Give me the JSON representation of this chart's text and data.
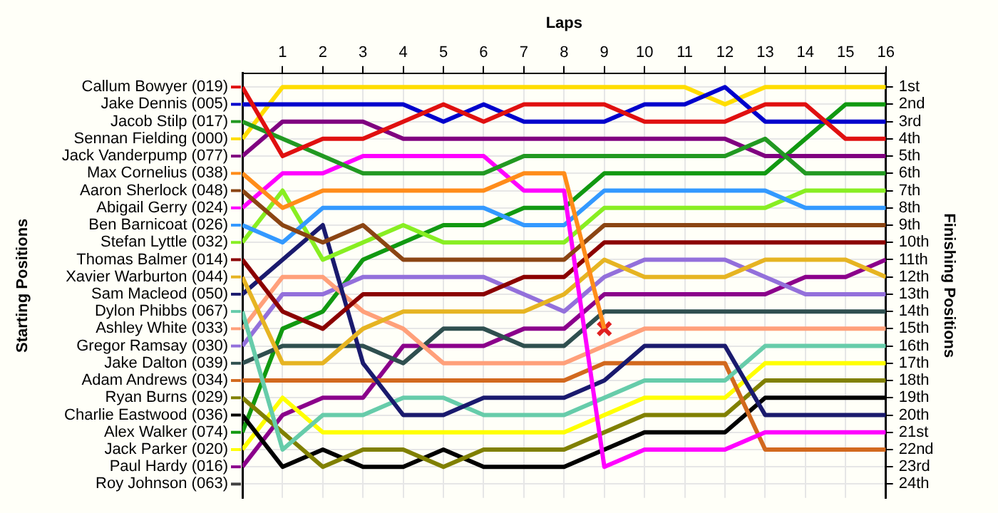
{
  "chart_data": {
    "type": "line",
    "xlabel": "Laps",
    "annotations": [
      "Starting Positions"
    ],
    "y2label": "Finishing Positions",
    "grid": true,
    "legend": "left",
    "x": [
      0,
      1,
      2,
      3,
      4,
      5,
      6,
      7,
      8,
      9,
      10,
      11,
      12,
      13,
      14,
      15,
      16
    ],
    "xlim": [
      0,
      16
    ],
    "xticks": [
      1,
      2,
      3,
      4,
      5,
      6,
      7,
      8,
      9,
      10,
      11,
      12,
      13,
      14,
      15,
      16
    ],
    "y2lim": [
      24.8,
      0.2
    ],
    "y2ticks": [
      {
        "value": 1,
        "label": "1st"
      },
      {
        "value": 2,
        "label": "2nd"
      },
      {
        "value": 3,
        "label": "3rd"
      },
      {
        "value": 4,
        "label": "4th"
      },
      {
        "value": 5,
        "label": "5th"
      },
      {
        "value": 6,
        "label": "6th"
      },
      {
        "value": 7,
        "label": "7th"
      },
      {
        "value": 8,
        "label": "8th"
      },
      {
        "value": 9,
        "label": "9th"
      },
      {
        "value": 10,
        "label": "10th"
      },
      {
        "value": 11,
        "label": "11th"
      },
      {
        "value": 12,
        "label": "12th"
      },
      {
        "value": 13,
        "label": "13th"
      },
      {
        "value": 14,
        "label": "14th"
      },
      {
        "value": 15,
        "label": "15th"
      },
      {
        "value": 16,
        "label": "16th"
      },
      {
        "value": 17,
        "label": "17th"
      },
      {
        "value": 18,
        "label": "18th"
      },
      {
        "value": 19,
        "label": "19th"
      },
      {
        "value": 20,
        "label": "20th"
      },
      {
        "value": 21,
        "label": "21st"
      },
      {
        "value": 22,
        "label": "22nd"
      },
      {
        "value": 23,
        "label": "23rd"
      },
      {
        "value": 24,
        "label": "24th"
      }
    ],
    "series": [
      {
        "name": "Callum Bowyer (019)",
        "axis": "y2",
        "color": "#e01010",
        "values": [
          1,
          5,
          4,
          4,
          3,
          2,
          3,
          2,
          2,
          2,
          3,
          3,
          3,
          2,
          2,
          4,
          4
        ]
      },
      {
        "name": "Jake Dennis (005)",
        "axis": "y2",
        "color": "#0000cc",
        "values": [
          2,
          2,
          2,
          2,
          2,
          3,
          2,
          3,
          3,
          3,
          2,
          2,
          1,
          3,
          3,
          3,
          3
        ]
      },
      {
        "name": "Jacob Stilp (017)",
        "axis": "y2",
        "color": "#229922",
        "values": [
          3,
          4,
          5,
          6,
          6,
          6,
          6,
          5,
          5,
          5,
          5,
          5,
          5,
          4,
          6,
          6,
          6
        ]
      },
      {
        "name": "Sennan Fielding (000)",
        "axis": "y2",
        "color": "#ffdd00",
        "values": [
          4,
          1,
          1,
          1,
          1,
          1,
          1,
          1,
          1,
          1,
          1,
          1,
          2,
          1,
          1,
          1,
          1
        ]
      },
      {
        "name": "Jack Vanderpump (077)",
        "axis": "y2",
        "color": "#800080",
        "values": [
          5,
          3,
          3,
          3,
          4,
          4,
          4,
          4,
          4,
          4,
          4,
          4,
          4,
          5,
          5,
          5,
          5
        ]
      },
      {
        "name": "Max Cornelius (038)",
        "axis": "y2",
        "color": "#ff8c1a",
        "values": [
          6,
          8,
          7,
          7,
          7,
          7,
          7,
          6,
          6,
          15,
          null,
          null,
          null,
          null,
          null,
          null,
          null
        ]
      },
      {
        "name": "Aaron Sherlock (048)",
        "axis": "y2",
        "color": "#8b4513",
        "values": [
          7,
          9,
          10,
          9,
          11,
          11,
          11,
          11,
          11,
          9,
          9,
          9,
          9,
          9,
          9,
          9,
          9
        ]
      },
      {
        "name": "Abigail Gerry (024)",
        "axis": "y2",
        "color": "#ff00ff",
        "values": [
          8,
          6,
          6,
          5,
          5,
          5,
          5,
          7,
          7,
          23,
          22,
          22,
          22,
          21,
          21,
          21,
          21
        ]
      },
      {
        "name": "Ben Barnicoat (026)",
        "axis": "y2",
        "color": "#3399ff",
        "values": [
          9,
          10,
          8,
          8,
          8,
          8,
          8,
          9,
          9,
          7,
          7,
          7,
          7,
          7,
          8,
          8,
          8
        ]
      },
      {
        "name": "Stefan Lyttle (032)",
        "axis": "y2",
        "color": "#88ee22",
        "values": [
          10,
          7,
          11,
          10,
          9,
          10,
          10,
          10,
          10,
          8,
          8,
          8,
          8,
          8,
          7,
          7,
          7
        ]
      },
      {
        "name": "Thomas Balmer (014)",
        "axis": "y2",
        "color": "#8b0000",
        "values": [
          11,
          14,
          15,
          13,
          13,
          13,
          13,
          12,
          12,
          10,
          10,
          10,
          10,
          10,
          10,
          10,
          10
        ]
      },
      {
        "name": "Xavier Warburton (044)",
        "axis": "y2",
        "color": "#e6b422",
        "values": [
          12,
          17,
          17,
          15,
          14,
          14,
          14,
          14,
          13,
          11,
          12,
          12,
          12,
          11,
          11,
          11,
          12
        ]
      },
      {
        "name": "Sam Macleod (050)",
        "axis": "y2",
        "color": "#1a1a6e",
        "values": [
          13,
          11,
          9,
          17,
          20,
          20,
          19,
          19,
          19,
          18,
          16,
          16,
          16,
          20,
          20,
          20,
          20
        ]
      },
      {
        "name": "Dylon Phibbs (067)",
        "axis": "y2",
        "color": "#66ccaa",
        "values": [
          14,
          22,
          20,
          20,
          19,
          19,
          20,
          20,
          20,
          19,
          18,
          18,
          18,
          16,
          16,
          16,
          16
        ]
      },
      {
        "name": "Ashley White (033)",
        "axis": "y2",
        "color": "#ffa07a",
        "values": [
          15,
          12,
          12,
          14,
          15,
          17,
          17,
          17,
          17,
          16,
          15,
          15,
          15,
          15,
          15,
          15,
          15
        ]
      },
      {
        "name": "Gregor Ramsay (030)",
        "axis": "y2",
        "color": "#9370db",
        "values": [
          16,
          13,
          13,
          12,
          12,
          12,
          12,
          13,
          14,
          12,
          11,
          11,
          11,
          12,
          13,
          13,
          13
        ]
      },
      {
        "name": "Jake Dalton (039)",
        "axis": "y2",
        "color": "#2f4f4f",
        "values": [
          17,
          16,
          16,
          16,
          17,
          15,
          15,
          16,
          16,
          14,
          14,
          14,
          14,
          14,
          14,
          14,
          14
        ]
      },
      {
        "name": "Adam Andrews (034)",
        "axis": "y2",
        "color": "#d2691e",
        "values": [
          18,
          18,
          18,
          18,
          18,
          18,
          18,
          18,
          18,
          17,
          17,
          17,
          17,
          22,
          22,
          22,
          22
        ]
      },
      {
        "name": "Ryan Burns (029)",
        "axis": "y2",
        "color": "#808000",
        "values": [
          19,
          21,
          23,
          22,
          22,
          23,
          22,
          22,
          22,
          21,
          20,
          20,
          20,
          18,
          18,
          18,
          18
        ]
      },
      {
        "name": "Charlie Eastwood (036)",
        "axis": "y2",
        "color": "#000000",
        "values": [
          20,
          23,
          22,
          23,
          23,
          22,
          23,
          23,
          23,
          22,
          21,
          21,
          21,
          19,
          19,
          19,
          19
        ]
      },
      {
        "name": "Alex Walker (074)",
        "axis": "y2",
        "color": "#119911",
        "values": [
          21,
          15,
          14,
          11,
          10,
          9,
          9,
          8,
          8,
          6,
          6,
          6,
          6,
          6,
          4,
          2,
          2
        ]
      },
      {
        "name": "Jack Parker (020)",
        "axis": "y2",
        "color": "#ffff00",
        "values": [
          22,
          19,
          21,
          21,
          21,
          21,
          21,
          21,
          21,
          20,
          19,
          19,
          19,
          17,
          17,
          17,
          17
        ]
      },
      {
        "name": "Paul Hardy (016)",
        "axis": "y2",
        "color": "#8b008b",
        "values": [
          23,
          20,
          19,
          19,
          16,
          16,
          16,
          15,
          15,
          13,
          13,
          13,
          13,
          13,
          12,
          12,
          11
        ]
      },
      {
        "name": "Roy Johnson (063)",
        "axis": "y2",
        "color": "#404040",
        "values": [
          null,
          null,
          null,
          null,
          null,
          null,
          null,
          null,
          null,
          null,
          null,
          null,
          null,
          null,
          null,
          null,
          null
        ]
      },
      {
        "type": "scatter",
        "axis": "y2",
        "color": "#e02020",
        "marker": "cross",
        "x": [
          9
        ],
        "values": [
          15
        ]
      }
    ]
  }
}
